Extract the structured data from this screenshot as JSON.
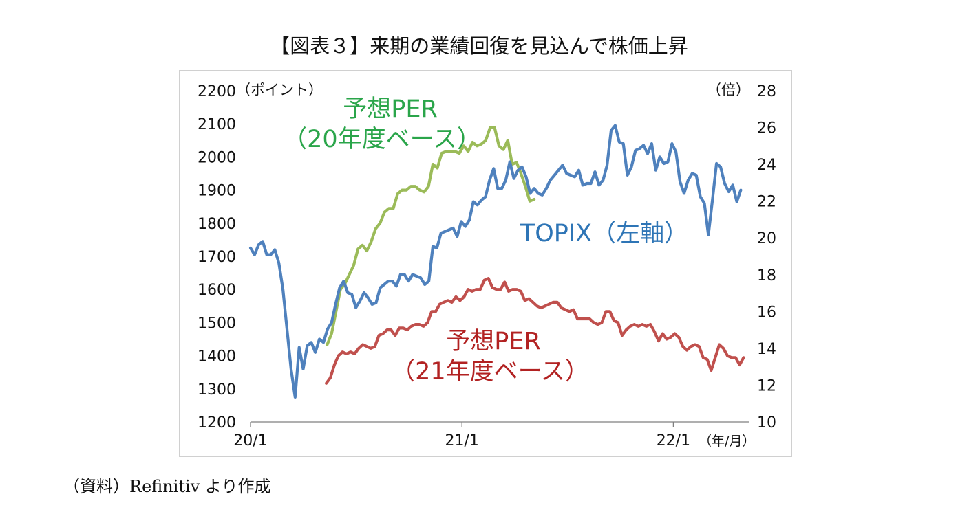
{
  "figure": {
    "title": "【図表３】来期の業績回復を見込んで株価上昇",
    "source": "（資料）Refinitiv より作成"
  },
  "colors": {
    "topix": "#4f81bd",
    "per20": "#9bbb59",
    "per21": "#c0504d",
    "label_per20": "#2aa54a",
    "label_topix": "#2e75b6",
    "label_per21": "#b22222"
  },
  "chart_data": {
    "type": "line",
    "x_unit": "年/月",
    "x_ticks": [
      {
        "label": "20/1",
        "t": 0
      },
      {
        "label": "21/1",
        "t": 12
      },
      {
        "label": "22/1",
        "t": 24
      }
    ],
    "x_axis_label": "（年/月）",
    "x_range_months": [
      0,
      28.3
    ],
    "y_left": {
      "unit_label": "（ポイント）",
      "range": [
        1200,
        2200
      ],
      "ticks": [
        "1200",
        "1300",
        "1400",
        "1500",
        "1600",
        "1700",
        "1800",
        "1900",
        "2000",
        "2100",
        "2200"
      ]
    },
    "y_right": {
      "unit_label": "（倍）",
      "range": [
        10,
        28
      ],
      "ticks": [
        "10",
        "12",
        "14",
        "16",
        "18",
        "20",
        "22",
        "24",
        "26",
        "28"
      ]
    },
    "grid": false,
    "legend": "inline labels",
    "series": [
      {
        "name": "TOPIX（左軸）",
        "axis": "left",
        "color": "#4f81bd",
        "points": [
          [
            0,
            1725
          ],
          [
            0.23,
            1705
          ],
          [
            0.46,
            1735
          ],
          [
            0.69,
            1745
          ],
          [
            0.92,
            1705
          ],
          [
            1.15,
            1705
          ],
          [
            1.38,
            1720
          ],
          [
            1.61,
            1680
          ],
          [
            1.84,
            1600
          ],
          [
            2.07,
            1480
          ],
          [
            2.3,
            1360
          ],
          [
            2.53,
            1275
          ],
          [
            2.76,
            1425
          ],
          [
            2.99,
            1360
          ],
          [
            3.22,
            1430
          ],
          [
            3.45,
            1440
          ],
          [
            3.68,
            1410
          ],
          [
            3.91,
            1450
          ],
          [
            4.14,
            1440
          ],
          [
            4.37,
            1480
          ],
          [
            4.6,
            1500
          ],
          [
            4.83,
            1555
          ],
          [
            5.06,
            1605
          ],
          [
            5.29,
            1625
          ],
          [
            5.52,
            1590
          ],
          [
            5.75,
            1585
          ],
          [
            5.98,
            1545
          ],
          [
            6.21,
            1565
          ],
          [
            6.44,
            1590
          ],
          [
            6.67,
            1575
          ],
          [
            6.9,
            1555
          ],
          [
            7.13,
            1560
          ],
          [
            7.36,
            1605
          ],
          [
            7.59,
            1615
          ],
          [
            7.82,
            1625
          ],
          [
            8.05,
            1625
          ],
          [
            8.28,
            1610
          ],
          [
            8.51,
            1645
          ],
          [
            8.74,
            1645
          ],
          [
            8.97,
            1625
          ],
          [
            9.2,
            1645
          ],
          [
            9.43,
            1640
          ],
          [
            9.66,
            1635
          ],
          [
            9.89,
            1615
          ],
          [
            10.12,
            1625
          ],
          [
            10.35,
            1730
          ],
          [
            10.58,
            1725
          ],
          [
            10.81,
            1770
          ],
          [
            11.04,
            1775
          ],
          [
            11.27,
            1780
          ],
          [
            11.5,
            1785
          ],
          [
            11.73,
            1760
          ],
          [
            11.96,
            1805
          ],
          [
            12.19,
            1790
          ],
          [
            12.42,
            1810
          ],
          [
            12.65,
            1865
          ],
          [
            12.88,
            1855
          ],
          [
            13.11,
            1870
          ],
          [
            13.34,
            1880
          ],
          [
            13.57,
            1930
          ],
          [
            13.8,
            1965
          ],
          [
            14.03,
            1905
          ],
          [
            14.26,
            1905
          ],
          [
            14.49,
            1930
          ],
          [
            14.72,
            1985
          ],
          [
            14.95,
            1935
          ],
          [
            15.18,
            1960
          ],
          [
            15.41,
            1970
          ],
          [
            15.64,
            1940
          ],
          [
            15.87,
            1890
          ],
          [
            16.1,
            1905
          ],
          [
            16.33,
            1890
          ],
          [
            16.56,
            1885
          ],
          [
            16.79,
            1905
          ],
          [
            17.02,
            1930
          ],
          [
            17.25,
            1945
          ],
          [
            17.48,
            1960
          ],
          [
            17.71,
            1975
          ],
          [
            17.94,
            1950
          ],
          [
            18.17,
            1945
          ],
          [
            18.4,
            1940
          ],
          [
            18.63,
            1960
          ],
          [
            18.86,
            1915
          ],
          [
            19.09,
            1920
          ],
          [
            19.32,
            1920
          ],
          [
            19.55,
            1955
          ],
          [
            19.78,
            1915
          ],
          [
            20.01,
            1930
          ],
          [
            20.24,
            1975
          ],
          [
            20.47,
            2080
          ],
          [
            20.7,
            2095
          ],
          [
            20.93,
            2045
          ],
          [
            21.16,
            2040
          ],
          [
            21.39,
            1945
          ],
          [
            21.62,
            1970
          ],
          [
            21.85,
            2020
          ],
          [
            22.08,
            2025
          ],
          [
            22.31,
            2035
          ],
          [
            22.54,
            2010
          ],
          [
            22.77,
            2040
          ],
          [
            23.0,
            1960
          ],
          [
            23.23,
            2000
          ],
          [
            23.46,
            1980
          ],
          [
            23.69,
            1985
          ],
          [
            23.92,
            2040
          ],
          [
            24.15,
            2015
          ],
          [
            24.38,
            1925
          ],
          [
            24.61,
            1890
          ],
          [
            24.84,
            1930
          ],
          [
            25.07,
            1950
          ],
          [
            25.3,
            1945
          ],
          [
            25.53,
            1880
          ],
          [
            25.76,
            1860
          ],
          [
            25.99,
            1765
          ],
          [
            26.22,
            1870
          ],
          [
            26.45,
            1980
          ],
          [
            26.68,
            1970
          ],
          [
            26.91,
            1920
          ],
          [
            27.14,
            1895
          ],
          [
            27.37,
            1915
          ],
          [
            27.6,
            1865
          ],
          [
            27.83,
            1900
          ]
        ]
      },
      {
        "name": "予想PER（20年度ベース）",
        "axis": "right",
        "color": "#9bbb59",
        "points": [
          [
            4.35,
            14.2
          ],
          [
            4.6,
            14.8
          ],
          [
            4.85,
            16.0
          ],
          [
            5.1,
            17.2
          ],
          [
            5.35,
            17.5
          ],
          [
            5.6,
            18.0
          ],
          [
            5.85,
            18.5
          ],
          [
            6.1,
            19.4
          ],
          [
            6.35,
            19.6
          ],
          [
            6.6,
            19.3
          ],
          [
            6.85,
            19.8
          ],
          [
            7.1,
            20.5
          ],
          [
            7.35,
            20.8
          ],
          [
            7.6,
            21.4
          ],
          [
            7.85,
            21.6
          ],
          [
            8.1,
            21.6
          ],
          [
            8.35,
            22.4
          ],
          [
            8.6,
            22.6
          ],
          [
            8.85,
            22.6
          ],
          [
            9.1,
            22.8
          ],
          [
            9.35,
            22.8
          ],
          [
            9.6,
            22.6
          ],
          [
            9.85,
            22.5
          ],
          [
            10.1,
            22.8
          ],
          [
            10.35,
            24.0
          ],
          [
            10.6,
            23.8
          ],
          [
            10.85,
            24.6
          ],
          [
            11.1,
            24.7
          ],
          [
            11.35,
            24.7
          ],
          [
            11.6,
            24.7
          ],
          [
            11.85,
            24.6
          ],
          [
            12.1,
            25.0
          ],
          [
            12.35,
            24.7
          ],
          [
            12.6,
            25.2
          ],
          [
            12.85,
            25.0
          ],
          [
            13.1,
            25.1
          ],
          [
            13.35,
            25.3
          ],
          [
            13.6,
            26.0
          ],
          [
            13.85,
            26.0
          ],
          [
            14.1,
            25.0
          ],
          [
            14.35,
            24.8
          ],
          [
            14.6,
            25.3
          ],
          [
            14.85,
            24.0
          ],
          [
            15.1,
            24.1
          ],
          [
            15.35,
            23.5
          ],
          [
            15.6,
            22.8
          ],
          [
            15.85,
            22.0
          ],
          [
            16.1,
            22.1
          ]
        ]
      },
      {
        "name": "予想PER（21年度ベース）",
        "axis": "right",
        "color": "#c0504d",
        "points": [
          [
            4.3,
            12.1
          ],
          [
            4.53,
            12.4
          ],
          [
            4.76,
            13.1
          ],
          [
            4.99,
            13.6
          ],
          [
            5.22,
            13.8
          ],
          [
            5.45,
            13.7
          ],
          [
            5.68,
            13.8
          ],
          [
            5.91,
            13.7
          ],
          [
            6.14,
            14.0
          ],
          [
            6.37,
            14.2
          ],
          [
            6.6,
            14.1
          ],
          [
            6.83,
            14.0
          ],
          [
            7.06,
            14.1
          ],
          [
            7.29,
            14.7
          ],
          [
            7.52,
            14.8
          ],
          [
            7.75,
            15.0
          ],
          [
            7.98,
            15.0
          ],
          [
            8.21,
            14.7
          ],
          [
            8.44,
            15.1
          ],
          [
            8.67,
            15.1
          ],
          [
            8.9,
            15.0
          ],
          [
            9.13,
            15.2
          ],
          [
            9.36,
            15.3
          ],
          [
            9.59,
            15.3
          ],
          [
            9.82,
            15.2
          ],
          [
            10.05,
            15.4
          ],
          [
            10.28,
            16.0
          ],
          [
            10.51,
            16.0
          ],
          [
            10.74,
            16.4
          ],
          [
            10.97,
            16.5
          ],
          [
            11.2,
            16.6
          ],
          [
            11.43,
            16.5
          ],
          [
            11.66,
            16.8
          ],
          [
            11.89,
            16.6
          ],
          [
            12.12,
            16.8
          ],
          [
            12.35,
            17.2
          ],
          [
            12.58,
            17.1
          ],
          [
            12.81,
            17.2
          ],
          [
            13.04,
            17.2
          ],
          [
            13.27,
            17.7
          ],
          [
            13.5,
            17.8
          ],
          [
            13.73,
            17.3
          ],
          [
            13.96,
            17.2
          ],
          [
            14.19,
            17.2
          ],
          [
            14.42,
            17.6
          ],
          [
            14.65,
            17.1
          ],
          [
            14.88,
            17.2
          ],
          [
            15.11,
            17.2
          ],
          [
            15.34,
            17.1
          ],
          [
            15.57,
            16.6
          ],
          [
            15.8,
            16.7
          ],
          [
            16.03,
            16.5
          ],
          [
            16.26,
            16.3
          ],
          [
            16.49,
            16.2
          ],
          [
            16.72,
            16.3
          ],
          [
            16.95,
            16.4
          ],
          [
            17.18,
            16.5
          ],
          [
            17.41,
            16.5
          ],
          [
            17.64,
            16.2
          ],
          [
            17.87,
            16.1
          ],
          [
            18.1,
            16.0
          ],
          [
            18.33,
            16.1
          ],
          [
            18.56,
            15.6
          ],
          [
            18.79,
            15.6
          ],
          [
            19.02,
            15.6
          ],
          [
            19.25,
            15.6
          ],
          [
            19.48,
            15.4
          ],
          [
            19.71,
            15.3
          ],
          [
            19.94,
            15.4
          ],
          [
            20.17,
            16.0
          ],
          [
            20.4,
            16.0
          ],
          [
            20.63,
            15.5
          ],
          [
            20.86,
            15.4
          ],
          [
            21.09,
            14.7
          ],
          [
            21.32,
            15.0
          ],
          [
            21.55,
            15.2
          ],
          [
            21.78,
            15.3
          ],
          [
            22.01,
            15.2
          ],
          [
            22.24,
            15.3
          ],
          [
            22.47,
            15.2
          ],
          [
            22.7,
            15.3
          ],
          [
            22.93,
            14.9
          ],
          [
            23.16,
            14.4
          ],
          [
            23.39,
            14.8
          ],
          [
            23.62,
            14.5
          ],
          [
            23.85,
            14.6
          ],
          [
            24.08,
            14.8
          ],
          [
            24.31,
            14.6
          ],
          [
            24.54,
            14.1
          ],
          [
            24.77,
            13.9
          ],
          [
            25.0,
            14.1
          ],
          [
            25.23,
            14.2
          ],
          [
            25.46,
            14.1
          ],
          [
            25.69,
            13.5
          ],
          [
            25.92,
            13.4
          ],
          [
            26.15,
            12.8
          ],
          [
            26.38,
            13.5
          ],
          [
            26.61,
            14.2
          ],
          [
            26.84,
            14.0
          ],
          [
            27.07,
            13.6
          ],
          [
            27.3,
            13.5
          ],
          [
            27.53,
            13.5
          ],
          [
            27.76,
            13.1
          ],
          [
            27.99,
            13.5
          ]
        ]
      }
    ],
    "annotations": {
      "per20_line1": "予想PER",
      "per20_line2": "（20年度ベース）",
      "topix": "TOPIX（左軸）",
      "per21_line1": "予想PER",
      "per21_line2": "（21年度ベース）"
    }
  }
}
